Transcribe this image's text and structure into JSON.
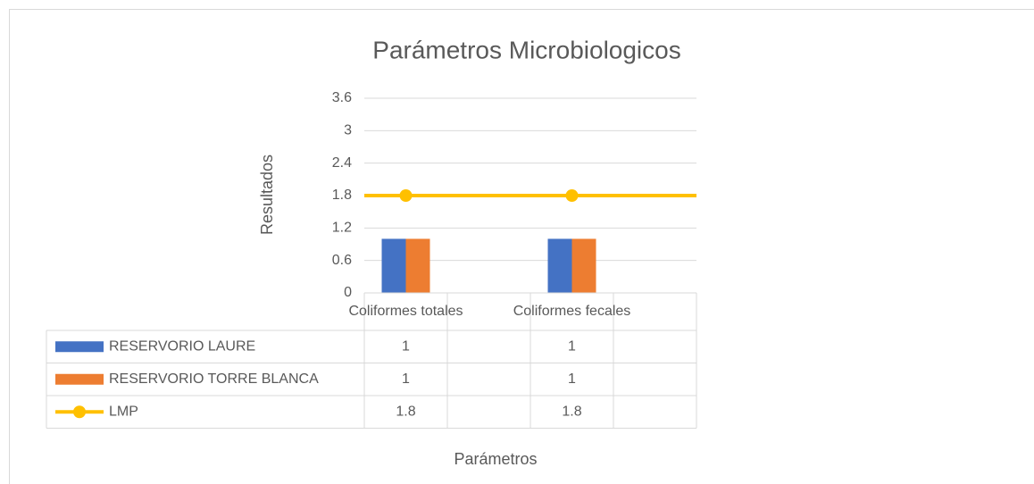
{
  "chart_data": {
    "type": "bar",
    "title": "Parámetros Microbiologicos",
    "x_label": "Parámetros",
    "y_label": "Resultados",
    "categories": [
      "Coliformes totales",
      null,
      "Coliformes fecales",
      null
    ],
    "series": [
      {
        "name": "RESERVORIO LAURE",
        "color": "#4472c4",
        "type": "bar",
        "values": [
          1,
          null,
          1,
          null
        ]
      },
      {
        "name": "RESERVORIO TORRE BLANCA",
        "color": "#ed7d31",
        "type": "bar",
        "values": [
          1,
          null,
          1,
          null
        ]
      },
      {
        "name": "LMP",
        "color": "#ffc000",
        "type": "line",
        "values": [
          1.8,
          null,
          1.8,
          null
        ]
      }
    ],
    "ylim": [
      0,
      3.6
    ],
    "yticks": [
      0,
      0.6,
      1.2,
      1.8,
      2.4,
      3,
      3.6
    ],
    "grid": true,
    "data_table": true
  }
}
